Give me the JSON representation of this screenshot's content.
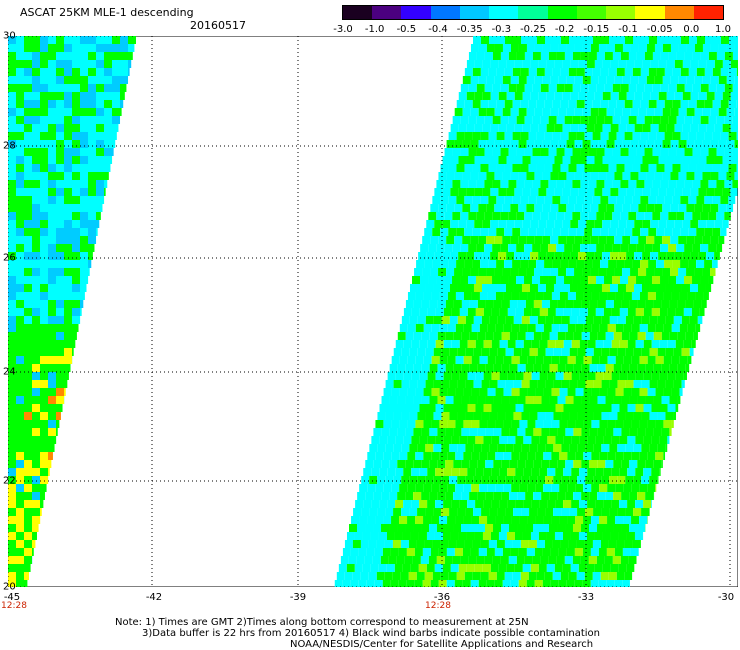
{
  "header": {
    "title": "ASCAT 25KM MLE-1 descending",
    "date": "20160517"
  },
  "colorbar": {
    "labels": [
      "-3.0",
      "-1.0",
      "-0.5",
      "-0.4",
      "-0.35",
      "-0.3",
      "-0.25",
      "-0.2",
      "-0.15",
      "-0.1",
      "-0.05",
      "0.0",
      "1.0"
    ],
    "colors": [
      "#1a0020",
      "#4b0080",
      "#3300ff",
      "#0077ff",
      "#00c8ff",
      "#00ffff",
      "#00ff99",
      "#00ff00",
      "#44ff00",
      "#99ff00",
      "#ffff00",
      "#ff8800",
      "#ff2200"
    ]
  },
  "map": {
    "lat_labels": [
      "30",
      "28",
      "26",
      "24",
      "22",
      "20"
    ],
    "lon_labels": [
      "-45",
      "-42",
      "-39",
      "-36",
      "-33",
      "-30"
    ],
    "time_labels": [
      "12:28",
      "12:28"
    ],
    "colors": {
      "cyan": "#00ffff",
      "green": "#00ff00",
      "yellow_green": "#99ff00",
      "yellow": "#ffff00",
      "orange": "#ff8800",
      "light_blue": "#00ccff"
    }
  },
  "footer": {
    "note1": "Note: 1) Times are GMT 2)Times along bottom correspond to measurement at 25N",
    "note2": "3)Data buffer is 22 hrs from 20160517 4) Black wind barbs indicate possible contamination",
    "note3": "NOAA/NESDIS/Center for Satellite Applications and Research"
  }
}
